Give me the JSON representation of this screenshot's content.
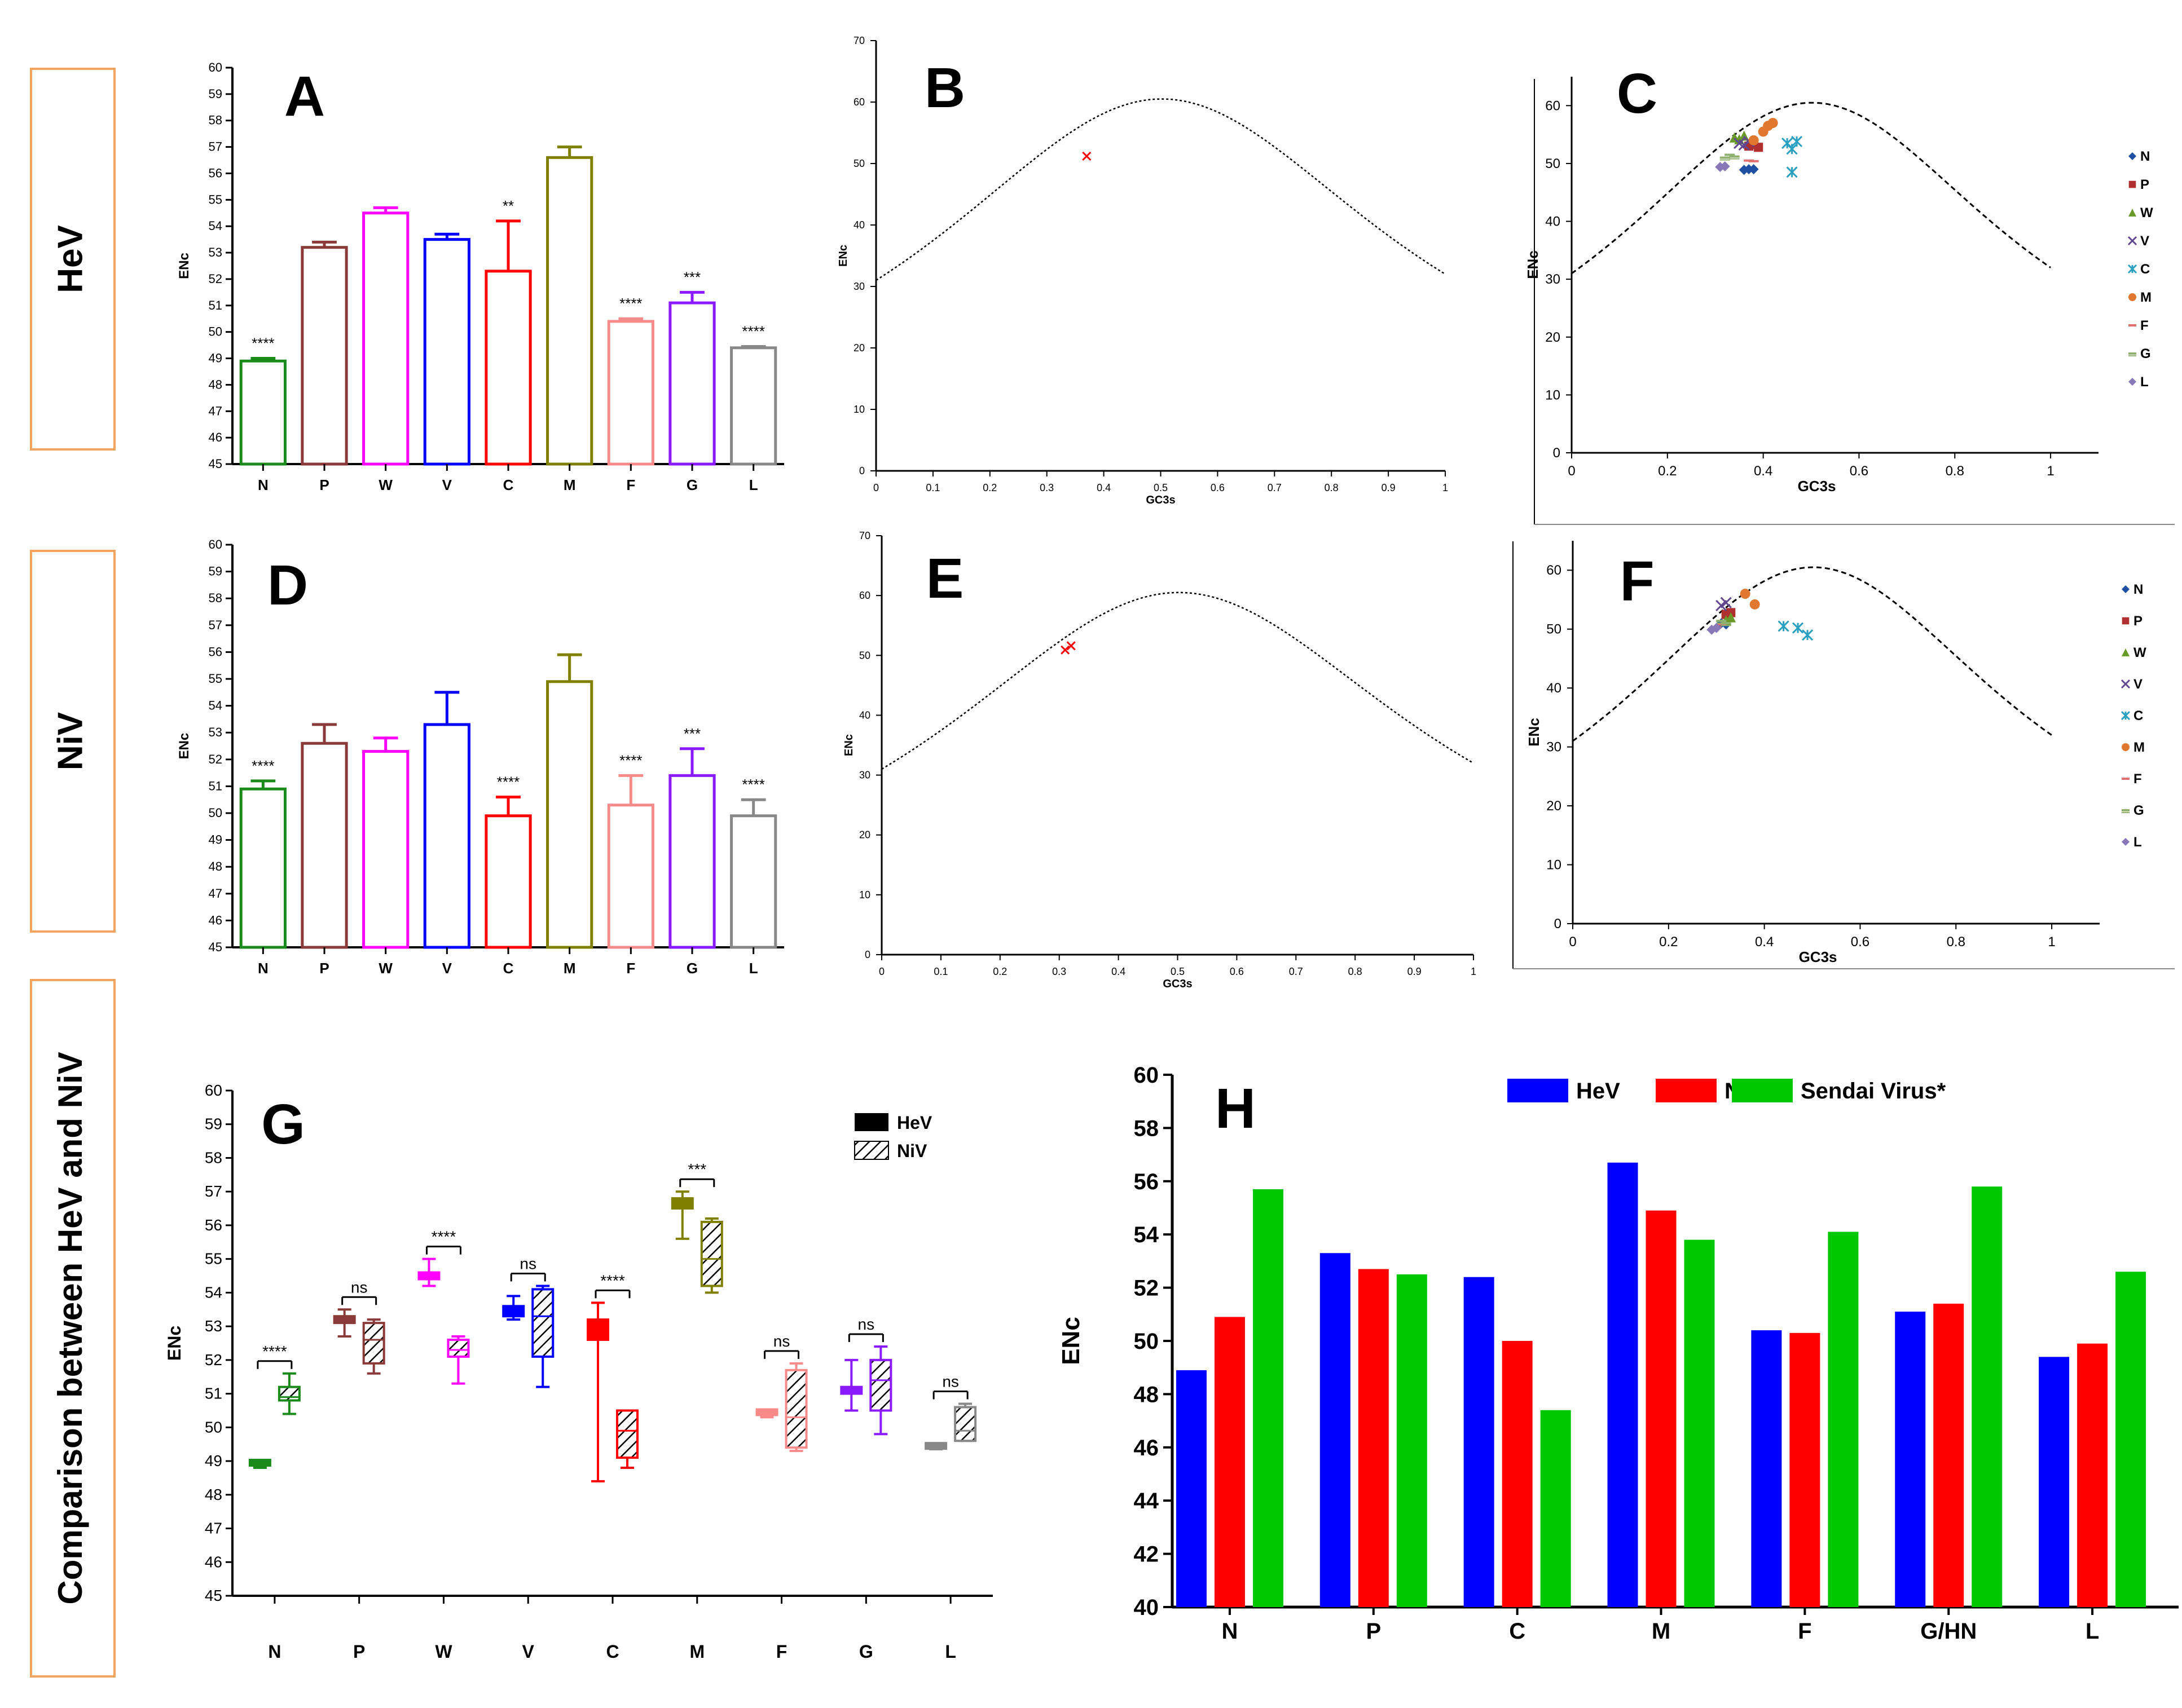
{
  "row_labels": [
    "HeV",
    "NiV",
    "Comparison between HeV and NiV"
  ],
  "colors": {
    "N": "#1a8a1a",
    "P": "#8b3a3a",
    "W": "#ff00ff",
    "V": "#0000ff",
    "C": "#ff0000",
    "M": "#808000",
    "F": "#f88a8a",
    "G": "#8a1aff",
    "L": "#888888",
    "HeV": "#0000ff",
    "NiV": "#ff0000",
    "Sendai": "#00c800",
    "box": "#f4a460"
  },
  "chart_data": [
    {
      "panel": "A",
      "type": "bar",
      "ylabel": "ENc",
      "ylim": [
        45,
        60
      ],
      "categories": [
        "N",
        "P",
        "W",
        "V",
        "C",
        "M",
        "F",
        "G",
        "L"
      ],
      "values": [
        48.9,
        53.2,
        54.5,
        53.5,
        52.3,
        56.6,
        50.4,
        51.1,
        49.4
      ],
      "errors": [
        0.1,
        0.2,
        0.2,
        0.2,
        1.9,
        0.4,
        0.1,
        0.4,
        0.05
      ],
      "significance": [
        "****",
        "",
        "",
        "",
        "**",
        "",
        "****",
        "***",
        "****"
      ]
    },
    {
      "panel": "B",
      "type": "scatter",
      "xlabel": "GC3s",
      "ylabel": "ENc",
      "xlim": [
        0,
        1
      ],
      "ylim": [
        0,
        70
      ],
      "points": [
        {
          "x": 0.37,
          "y": 51.2
        }
      ]
    },
    {
      "panel": "C",
      "type": "scatter",
      "xlabel": "GC3s",
      "ylabel": "ENc",
      "xlim": [
        0,
        1.1
      ],
      "ylim": [
        0,
        65
      ],
      "legend": [
        "N",
        "P",
        "W",
        "V",
        "C",
        "M",
        "F",
        "G",
        "L"
      ],
      "points": {
        "N": [
          [
            0.36,
            48.9
          ],
          [
            0.37,
            49.0
          ],
          [
            0.38,
            49.0
          ]
        ],
        "P": [
          [
            0.37,
            53.0
          ],
          [
            0.38,
            53.3
          ],
          [
            0.39,
            52.8
          ]
        ],
        "W": [
          [
            0.34,
            54.5
          ],
          [
            0.35,
            54.2
          ],
          [
            0.36,
            54.8
          ]
        ],
        "V": [
          [
            0.35,
            53.5
          ],
          [
            0.36,
            53.2
          ],
          [
            0.37,
            53.8
          ]
        ],
        "C": [
          [
            0.45,
            53.5
          ],
          [
            0.46,
            52.5
          ],
          [
            0.46,
            48.5
          ],
          [
            0.47,
            53.8
          ]
        ],
        "M": [
          [
            0.4,
            55.5
          ],
          [
            0.41,
            56.5
          ],
          [
            0.42,
            57.0
          ],
          [
            0.38,
            54.0
          ]
        ],
        "F": [
          [
            0.38,
            50.4
          ],
          [
            0.37,
            50.5
          ]
        ],
        "G": [
          [
            0.32,
            51.0
          ],
          [
            0.33,
            51.5
          ],
          [
            0.34,
            51.2
          ]
        ],
        "L": [
          [
            0.31,
            49.4
          ],
          [
            0.32,
            49.5
          ]
        ]
      }
    },
    {
      "panel": "D",
      "type": "bar",
      "ylabel": "ENc",
      "ylim": [
        45,
        60
      ],
      "categories": [
        "N",
        "P",
        "W",
        "V",
        "C",
        "M",
        "F",
        "G",
        "L"
      ],
      "values": [
        50.9,
        52.6,
        52.3,
        53.3,
        49.9,
        54.9,
        50.3,
        51.4,
        49.9
      ],
      "errors": [
        0.3,
        0.7,
        0.5,
        1.2,
        0.7,
        1.0,
        1.1,
        1.0,
        0.6
      ],
      "significance": [
        "****",
        "",
        "",
        "",
        "****",
        "",
        "****",
        "***",
        "****"
      ]
    },
    {
      "panel": "E",
      "type": "scatter",
      "xlabel": "GC3s",
      "ylabel": "ENc",
      "xlim": [
        0,
        1
      ],
      "ylim": [
        0,
        70
      ],
      "points": [
        {
          "x": 0.31,
          "y": 50.9
        },
        {
          "x": 0.32,
          "y": 51.6
        }
      ]
    },
    {
      "panel": "F",
      "type": "scatter",
      "xlabel": "GC3s",
      "ylabel": "ENc",
      "xlim": [
        0,
        1.1
      ],
      "ylim": [
        0,
        65
      ],
      "legend": [
        "N",
        "P",
        "W",
        "V",
        "C",
        "M",
        "F",
        "G",
        "L"
      ],
      "points": {
        "N": [
          [
            0.31,
            51.0
          ],
          [
            0.32,
            50.8
          ]
        ],
        "P": [
          [
            0.32,
            52.5
          ],
          [
            0.33,
            52.8
          ]
        ],
        "W": [
          [
            0.33,
            52.0
          ],
          [
            0.32,
            51.5
          ]
        ],
        "V": [
          [
            0.31,
            54.0
          ],
          [
            0.32,
            54.5
          ]
        ],
        "C": [
          [
            0.44,
            50.5
          ],
          [
            0.47,
            50.2
          ],
          [
            0.49,
            49.0
          ]
        ],
        "M": [
          [
            0.36,
            56.0
          ],
          [
            0.38,
            54.2
          ]
        ],
        "F": [
          [
            0.3,
            50.3
          ],
          [
            0.31,
            50.8
          ]
        ],
        "G": [
          [
            0.31,
            51.4
          ],
          [
            0.32,
            51.0
          ]
        ],
        "L": [
          [
            0.29,
            49.9
          ],
          [
            0.3,
            50.2
          ]
        ]
      }
    },
    {
      "panel": "G",
      "type": "box",
      "ylabel": "ENc",
      "ylim": [
        45,
        60
      ],
      "categories": [
        "N",
        "P",
        "W",
        "V",
        "C",
        "M",
        "F",
        "G",
        "L"
      ],
      "legend": [
        "HeV",
        "NiV"
      ],
      "HeV": [
        [
          48.8,
          48.85,
          48.9,
          48.95,
          49.0
        ],
        [
          52.7,
          53.1,
          53.2,
          53.3,
          53.5
        ],
        [
          54.2,
          54.4,
          54.5,
          54.6,
          55.0
        ],
        [
          53.2,
          53.3,
          53.4,
          53.6,
          53.9
        ],
        [
          48.4,
          52.6,
          52.9,
          53.2,
          53.7
        ],
        [
          55.6,
          56.5,
          56.7,
          56.8,
          57.0
        ],
        [
          50.3,
          50.35,
          50.4,
          50.45,
          50.5
        ],
        [
          50.5,
          51.0,
          51.1,
          51.2,
          52.0
        ],
        [
          49.35,
          49.4,
          49.4,
          49.45,
          49.5
        ]
      ],
      "NiV": [
        [
          50.4,
          50.8,
          50.9,
          51.2,
          51.6
        ],
        [
          51.6,
          51.9,
          52.6,
          53.1,
          53.2
        ],
        [
          51.3,
          52.1,
          52.3,
          52.6,
          52.7
        ],
        [
          51.2,
          52.1,
          53.3,
          54.1,
          54.2
        ],
        [
          48.8,
          49.1,
          49.9,
          50.5,
          50.5
        ],
        [
          54.0,
          54.2,
          55.0,
          56.1,
          56.2
        ],
        [
          49.3,
          49.4,
          50.3,
          51.7,
          51.9
        ],
        [
          49.8,
          50.5,
          51.4,
          52.0,
          52.4
        ],
        [
          49.6,
          49.6,
          49.9,
          50.6,
          50.7
        ]
      ],
      "significance": [
        "****",
        "ns",
        "****",
        "ns",
        "****",
        "***",
        "ns",
        "ns",
        "ns"
      ]
    },
    {
      "panel": "H",
      "type": "bar",
      "ylabel": "ENc",
      "ylim": [
        40,
        60
      ],
      "categories": [
        "N",
        "P",
        "C",
        "M",
        "F",
        "G/HN",
        "L"
      ],
      "series": [
        {
          "name": "HeV",
          "values": [
            48.9,
            53.3,
            52.4,
            56.7,
            50.4,
            51.1,
            49.4
          ]
        },
        {
          "name": "NiV",
          "values": [
            50.9,
            52.7,
            50.0,
            54.9,
            50.3,
            51.4,
            49.9
          ]
        },
        {
          "name": "Sendai Virus*",
          "values": [
            55.7,
            52.5,
            47.4,
            53.8,
            54.1,
            55.8,
            52.6
          ]
        }
      ]
    }
  ]
}
